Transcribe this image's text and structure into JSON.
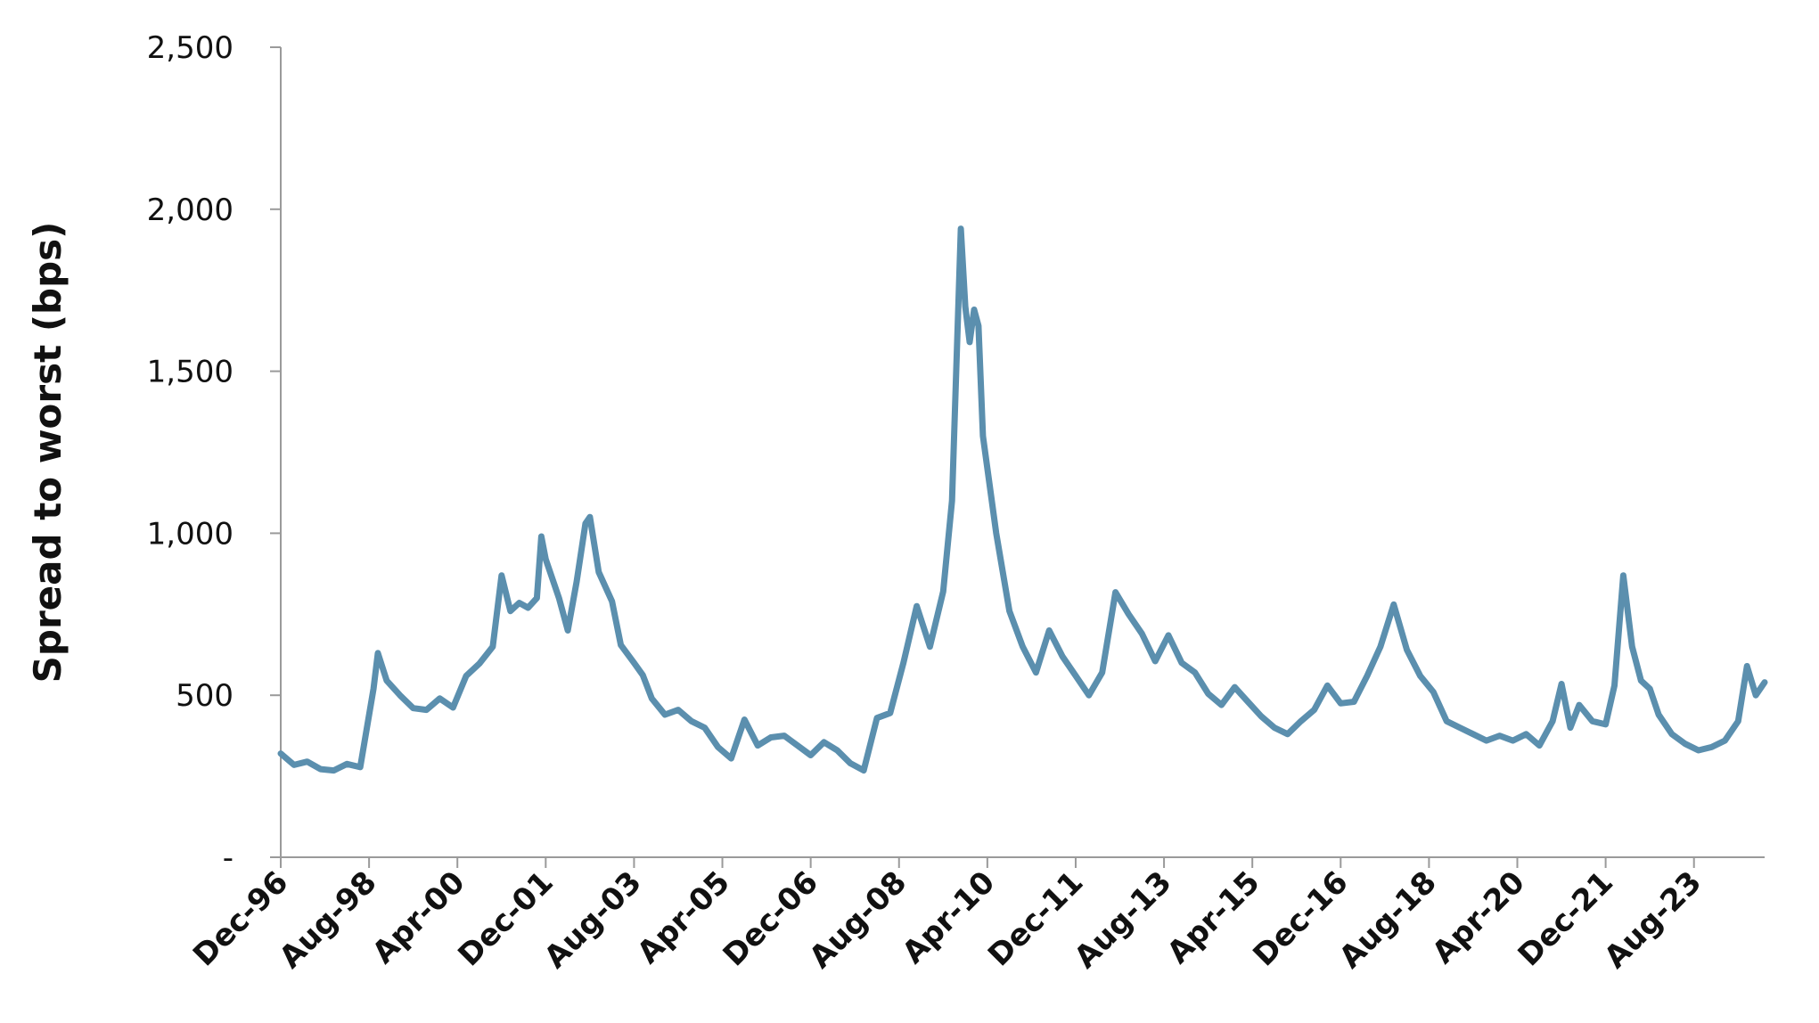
{
  "chart_data": {
    "type": "line",
    "title": "",
    "xlabel": "",
    "ylabel": "Spread to worst (bps)",
    "ylim": [
      0,
      2500
    ],
    "yticks": [
      0,
      500,
      1000,
      1500,
      2000,
      2500
    ],
    "ytick_labels": [
      "-",
      "500",
      "1,000",
      "1,500",
      "2,000",
      "2,500"
    ],
    "xticks": [
      "Dec-96",
      "Aug-98",
      "Apr-00",
      "Dec-01",
      "Aug-03",
      "Apr-05",
      "Dec-06",
      "Aug-08",
      "Apr-10",
      "Dec-11",
      "Aug-13",
      "Apr-15",
      "Dec-16",
      "Aug-18",
      "Apr-20",
      "Dec-21",
      "Aug-23"
    ],
    "x_range": [
      "1996-12",
      "2024-12"
    ],
    "grid": false,
    "legend": "none",
    "series": [
      {
        "color": "#5b8fae",
        "points": [
          [
            "1996-12",
            320
          ],
          [
            "1997-03",
            285
          ],
          [
            "1997-06",
            295
          ],
          [
            "1997-09",
            272
          ],
          [
            "1997-12",
            268
          ],
          [
            "1998-03",
            288
          ],
          [
            "1998-06",
            278
          ],
          [
            "1998-09",
            520
          ],
          [
            "1998-10",
            630
          ],
          [
            "1998-12",
            545
          ],
          [
            "1999-03",
            500
          ],
          [
            "1999-06",
            460
          ],
          [
            "1999-09",
            455
          ],
          [
            "1999-12",
            490
          ],
          [
            "2000-03",
            462
          ],
          [
            "2000-06",
            560
          ],
          [
            "2000-09",
            598
          ],
          [
            "2000-12",
            650
          ],
          [
            "2001-02",
            870
          ],
          [
            "2001-04",
            760
          ],
          [
            "2001-06",
            785
          ],
          [
            "2001-08",
            770
          ],
          [
            "2001-10",
            800
          ],
          [
            "2001-11",
            990
          ],
          [
            "2001-12",
            920
          ],
          [
            "2002-03",
            800
          ],
          [
            "2002-05",
            700
          ],
          [
            "2002-07",
            850
          ],
          [
            "2002-09",
            1030
          ],
          [
            "2002-10",
            1050
          ],
          [
            "2002-12",
            880
          ],
          [
            "2003-03",
            790
          ],
          [
            "2003-05",
            655
          ],
          [
            "2003-08",
            600
          ],
          [
            "2003-10",
            562
          ],
          [
            "2003-12",
            490
          ],
          [
            "2004-03",
            440
          ],
          [
            "2004-06",
            455
          ],
          [
            "2004-09",
            420
          ],
          [
            "2004-12",
            400
          ],
          [
            "2005-03",
            340
          ],
          [
            "2005-06",
            305
          ],
          [
            "2005-09",
            425
          ],
          [
            "2005-12",
            345
          ],
          [
            "2006-03",
            370
          ],
          [
            "2006-06",
            375
          ],
          [
            "2006-09",
            345
          ],
          [
            "2006-12",
            315
          ],
          [
            "2007-03",
            355
          ],
          [
            "2007-06",
            330
          ],
          [
            "2007-09",
            290
          ],
          [
            "2007-12",
            268
          ],
          [
            "2008-03",
            430
          ],
          [
            "2008-06",
            445
          ],
          [
            "2008-09",
            600
          ],
          [
            "2008-12",
            775
          ],
          [
            "2009-03",
            650
          ],
          [
            "2009-06",
            820
          ],
          [
            "2009-08",
            1100
          ],
          [
            "2009-10",
            1940
          ],
          [
            "2009-11",
            1700
          ],
          [
            "2009-12",
            1590
          ],
          [
            "2010-01",
            1690
          ],
          [
            "2010-02",
            1640
          ],
          [
            "2010-03",
            1300
          ],
          [
            "2010-06",
            1000
          ],
          [
            "2010-09",
            760
          ],
          [
            "2010-12",
            650
          ],
          [
            "2011-03",
            570
          ],
          [
            "2011-06",
            700
          ],
          [
            "2011-09",
            620
          ],
          [
            "2011-12",
            560
          ],
          [
            "2012-03",
            500
          ],
          [
            "2012-06",
            570
          ],
          [
            "2012-09",
            818
          ],
          [
            "2012-12",
            750
          ],
          [
            "2013-03",
            690
          ],
          [
            "2013-06",
            605
          ],
          [
            "2013-09",
            685
          ],
          [
            "2013-12",
            600
          ],
          [
            "2014-03",
            570
          ],
          [
            "2014-06",
            505
          ],
          [
            "2014-09",
            470
          ],
          [
            "2014-12",
            525
          ],
          [
            "2015-03",
            480
          ],
          [
            "2015-06",
            435
          ],
          [
            "2015-09",
            400
          ],
          [
            "2015-12",
            380
          ],
          [
            "2016-03",
            420
          ],
          [
            "2016-06",
            455
          ],
          [
            "2016-09",
            530
          ],
          [
            "2016-12",
            475
          ],
          [
            "2017-03",
            480
          ],
          [
            "2017-06",
            560
          ],
          [
            "2017-09",
            650
          ],
          [
            "2017-12",
            780
          ],
          [
            "2018-03",
            640
          ],
          [
            "2018-06",
            560
          ],
          [
            "2018-09",
            510
          ],
          [
            "2018-12",
            420
          ],
          [
            "2019-03",
            400
          ],
          [
            "2019-06",
            380
          ],
          [
            "2019-09",
            360
          ],
          [
            "2019-12",
            375
          ],
          [
            "2020-03",
            360
          ],
          [
            "2020-06",
            380
          ],
          [
            "2020-09",
            345
          ],
          [
            "2020-12",
            420
          ],
          [
            "2021-02",
            535
          ],
          [
            "2021-04",
            400
          ],
          [
            "2021-06",
            470
          ],
          [
            "2021-09",
            420
          ],
          [
            "2021-12",
            410
          ],
          [
            "2022-02",
            530
          ],
          [
            "2022-04",
            870
          ],
          [
            "2022-06",
            650
          ],
          [
            "2022-08",
            545
          ],
          [
            "2022-10",
            520
          ],
          [
            "2022-12",
            440
          ],
          [
            "2023-03",
            380
          ],
          [
            "2023-06",
            350
          ],
          [
            "2023-09",
            330
          ],
          [
            "2023-12",
            340
          ],
          [
            "2024-03",
            360
          ],
          [
            "2024-06",
            420
          ],
          [
            "2024-08",
            590
          ],
          [
            "2024-10",
            500
          ],
          [
            "2024-12",
            540
          ]
        ]
      }
    ]
  }
}
